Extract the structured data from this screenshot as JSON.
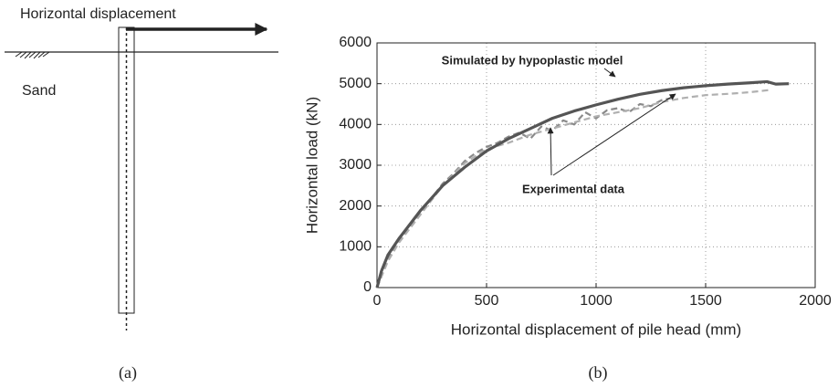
{
  "diagram": {
    "label": "Horizontal displacement",
    "soil": "Sand",
    "caption": "(a)"
  },
  "chart_data": {
    "type": "line",
    "caption": "(b)",
    "xlabel": "Horizontal displacement of pile head (mm)",
    "ylabel": "Horizontal load (kN)",
    "xlim": [
      0,
      2000
    ],
    "xticks": [
      0,
      500,
      1000,
      1500,
      2000
    ],
    "ylim": [
      0,
      6000
    ],
    "yticks": [
      0,
      1000,
      2000,
      3000,
      4000,
      5000,
      6000
    ],
    "grid": true,
    "series": [
      {
        "color": "#8a8a8a",
        "dash": true,
        "x": [
          0,
          50,
          100,
          200,
          300,
          350,
          400,
          450,
          500,
          550,
          600,
          650,
          700,
          750,
          800,
          850,
          900,
          950,
          1000,
          1050,
          1100,
          1150,
          1200,
          1250,
          1300,
          1350
        ],
        "values": [
          0,
          700,
          1150,
          1850,
          2550,
          2800,
          3100,
          3300,
          3450,
          3550,
          3700,
          3800,
          3650,
          3950,
          3850,
          4100,
          4000,
          4300,
          4150,
          4350,
          4400,
          4300,
          4500,
          4450,
          4600,
          4650
        ]
      },
      {
        "color": "#b0b0b0",
        "dash": true,
        "x": [
          0,
          50,
          100,
          200,
          300,
          400,
          500,
          600,
          700,
          800,
          900,
          1000,
          1100,
          1200,
          1300,
          1400,
          1500,
          1600,
          1700,
          1800
        ],
        "values": [
          0,
          650,
          1100,
          1800,
          2500,
          3050,
          3400,
          3550,
          3750,
          3900,
          4050,
          4200,
          4300,
          4400,
          4550,
          4650,
          4720,
          4750,
          4790,
          4850
        ]
      },
      {
        "color": "#555555",
        "dash": false,
        "x": [
          0,
          20,
          50,
          100,
          200,
          300,
          400,
          500,
          600,
          700,
          800,
          900,
          1000,
          1100,
          1200,
          1300,
          1400,
          1500,
          1600,
          1700,
          1780,
          1820,
          1880
        ],
        "values": [
          0,
          400,
          800,
          1200,
          1900,
          2500,
          2950,
          3350,
          3650,
          3900,
          4150,
          4330,
          4480,
          4620,
          4740,
          4830,
          4900,
          4950,
          4990,
          5020,
          5050,
          4990,
          5000
        ]
      }
    ],
    "annotations": [
      "Simulated by hypoplastic model",
      "Experimental data"
    ]
  }
}
